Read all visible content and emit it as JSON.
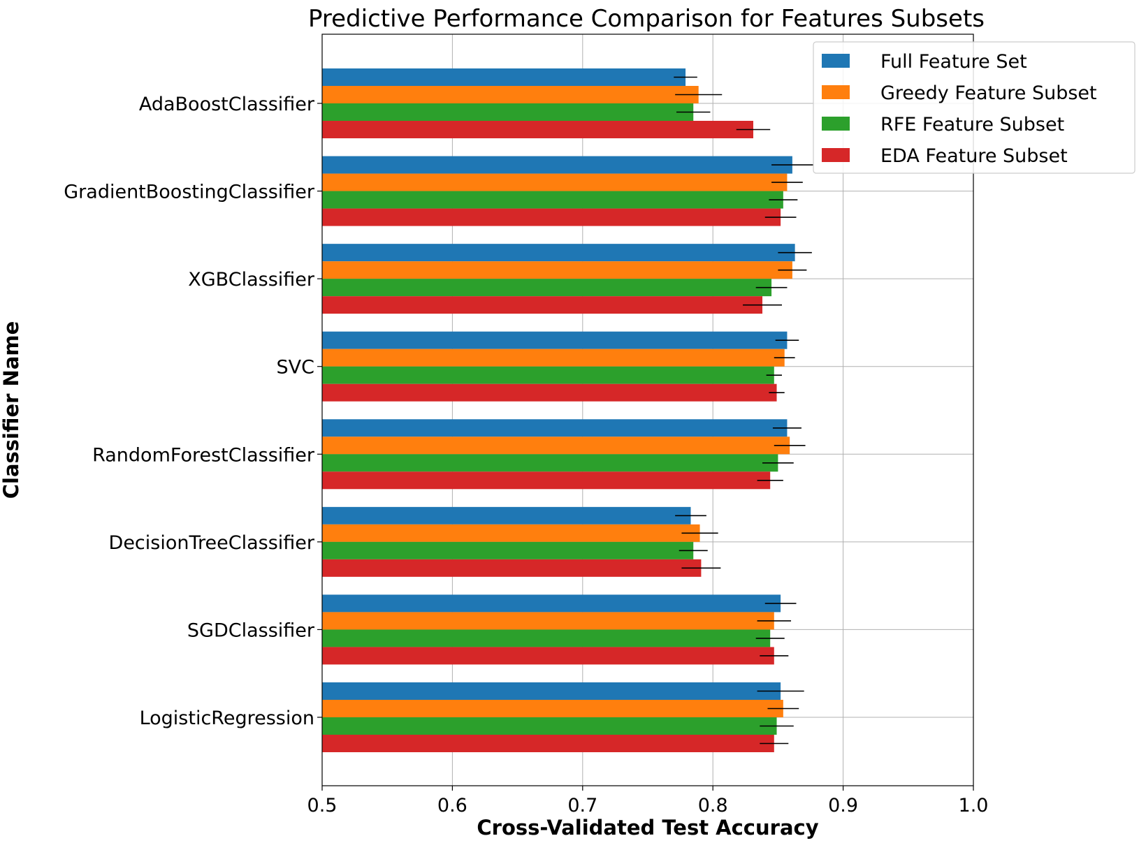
{
  "chart_data": {
    "type": "bar",
    "orientation": "horizontal",
    "title": "Predictive Performance Comparison for Features Subsets",
    "xlabel": "Cross-Validated Test Accuracy",
    "ylabel": "Classifier Name",
    "xlim": [
      0.5,
      1.0
    ],
    "xticks": [
      "0.5",
      "0.6",
      "0.7",
      "0.8",
      "0.9",
      "1.0"
    ],
    "grid": true,
    "legend_position": "top-right",
    "categories": [
      "LogisticRegression",
      "SGDClassifier",
      "DecisionTreeClassifier",
      "RandomForestClassifier",
      "SVC",
      "XGBClassifier",
      "GradientBoostingClassifier",
      "AdaBoostClassifier"
    ],
    "series": [
      {
        "name": "Full Feature Set",
        "color": "#1f77b4",
        "values": [
          0.852,
          0.852,
          0.783,
          0.857,
          0.857,
          0.863,
          0.861,
          0.779
        ],
        "errors": [
          0.018,
          0.012,
          0.012,
          0.011,
          0.009,
          0.013,
          0.016,
          0.009
        ]
      },
      {
        "name": "Greedy Feature Subset",
        "color": "#ff7f0e",
        "values": [
          0.854,
          0.847,
          0.79,
          0.859,
          0.855,
          0.861,
          0.857,
          0.789
        ],
        "errors": [
          0.012,
          0.013,
          0.014,
          0.012,
          0.008,
          0.011,
          0.012,
          0.018
        ]
      },
      {
        "name": "RFE Feature Subset",
        "color": "#2ca02c",
        "values": [
          0.849,
          0.844,
          0.785,
          0.85,
          0.847,
          0.845,
          0.854,
          0.785
        ],
        "errors": [
          0.013,
          0.011,
          0.011,
          0.012,
          0.006,
          0.012,
          0.011,
          0.013
        ]
      },
      {
        "name": "EDA Feature Subset",
        "color": "#d62728",
        "values": [
          0.847,
          0.847,
          0.791,
          0.844,
          0.849,
          0.838,
          0.852,
          0.831
        ],
        "errors": [
          0.011,
          0.011,
          0.015,
          0.01,
          0.006,
          0.015,
          0.012,
          0.013
        ]
      }
    ]
  }
}
